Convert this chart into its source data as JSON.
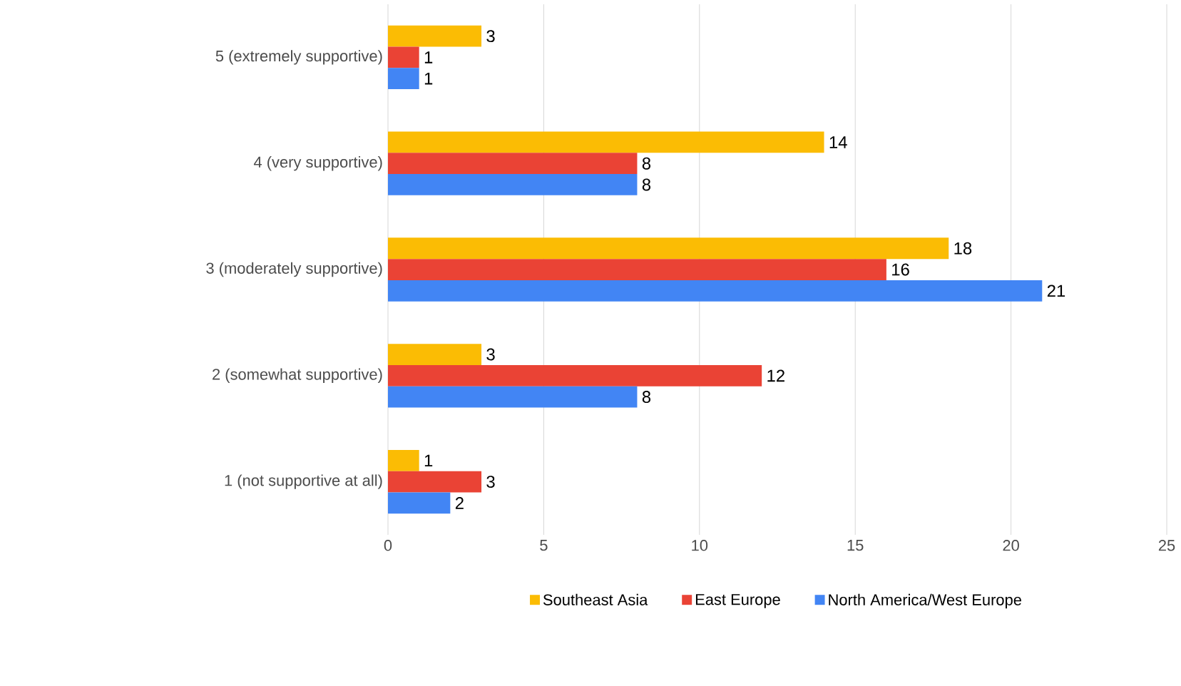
{
  "chart_data": {
    "type": "bar",
    "orientation": "horizontal",
    "categories": [
      "5 (extremely supportive)",
      "4 (very supportive)",
      "3 (moderately supportive)",
      "2 (somewhat supportive)",
      "1 (not supportive at all)"
    ],
    "series": [
      {
        "name": "Southeast Asia",
        "color": "#fbbc04",
        "values": [
          3,
          14,
          18,
          3,
          1
        ]
      },
      {
        "name": "East Europe",
        "color": "#ea4335",
        "values": [
          1,
          8,
          16,
          12,
          3
        ]
      },
      {
        "name": "North America/West Europe",
        "color": "#4285f4",
        "values": [
          1,
          8,
          21,
          8,
          2
        ]
      }
    ],
    "xlim": [
      0,
      25
    ],
    "xticks": [
      0,
      5,
      10,
      15,
      20,
      25
    ],
    "grid": "x",
    "legend": "bottom",
    "data_labels": true
  }
}
